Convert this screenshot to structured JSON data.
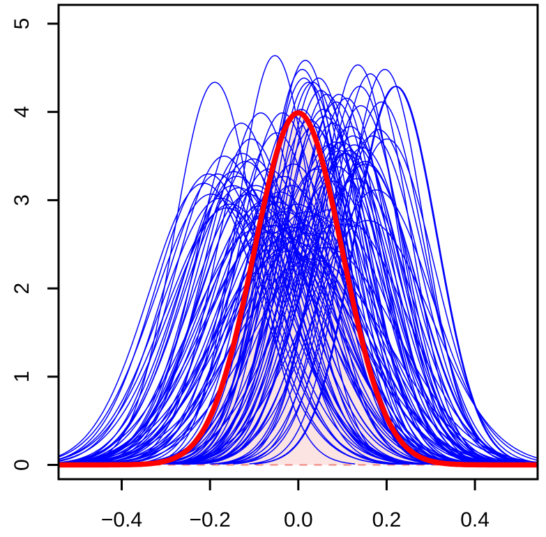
{
  "chart_data": {
    "type": "line",
    "title": "",
    "xlabel": "",
    "ylabel": "",
    "xlim": [
      -0.543,
      0.542
    ],
    "ylim": [
      -0.163,
      5.21
    ],
    "grid": false,
    "legend": "none",
    "x_ticks": {
      "values": [
        -0.4,
        -0.2,
        0.0,
        0.2,
        0.4
      ],
      "labels": [
        "−0.4",
        "−0.2",
        "0.0",
        "0.2",
        "0.4"
      ]
    },
    "y_ticks": {
      "values": [
        0,
        1,
        2,
        3,
        4,
        5
      ],
      "labels": [
        "0",
        "1",
        "2",
        "3",
        "4",
        "5"
      ]
    },
    "reference_curve": {
      "name": "true-normal-density",
      "distribution": "normal",
      "mean": 0,
      "sd": 0.1,
      "peak": 3.99,
      "color": "#ff0000",
      "line_width": 7.5
    },
    "shaded_region": {
      "description": "area under true normal density N(0, 0.1)",
      "fill": "#fbe4e1",
      "border_color": "#f0807a",
      "border_style": "dashed",
      "border_width": 2,
      "dash_pattern": [
        11,
        10
      ]
    },
    "sample_curves": {
      "name": "estimated-normal-densities",
      "distribution": "normal",
      "color": "#0000ff",
      "line_width": 1.5,
      "count": 100,
      "params": [
        [
          -0.012,
          0.101
        ],
        [
          0.087,
          0.118
        ],
        [
          -0.154,
          0.135
        ],
        [
          0.033,
          0.092
        ],
        [
          0.201,
          0.108
        ],
        [
          -0.096,
          0.126
        ],
        [
          0.142,
          0.098
        ],
        [
          -0.058,
          0.147
        ],
        [
          0.009,
          0.089
        ],
        [
          -0.203,
          0.121
        ],
        [
          0.118,
          0.104
        ],
        [
          -0.031,
          0.139
        ],
        [
          0.064,
          0.095
        ],
        [
          -0.127,
          0.113
        ],
        [
          0.176,
          0.128
        ],
        [
          0.022,
          0.152
        ],
        [
          -0.085,
          0.1
        ],
        [
          0.151,
          0.116
        ],
        [
          -0.176,
          0.132
        ],
        [
          0.046,
          0.091
        ],
        [
          0.103,
          0.143
        ],
        [
          -0.049,
          0.106
        ],
        [
          -0.139,
          0.122
        ],
        [
          0.188,
          0.097
        ],
        [
          -0.008,
          0.158
        ],
        [
          0.071,
          0.11
        ],
        [
          -0.113,
          0.13
        ],
        [
          0.135,
          0.088
        ],
        [
          -0.067,
          0.119
        ],
        [
          0.026,
          0.102
        ],
        [
          0.22,
          0.093
        ],
        [
          -0.162,
          0.137
        ],
        [
          0.094,
          0.112
        ],
        [
          -0.024,
          0.165
        ],
        [
          0.057,
          0.099
        ],
        [
          -0.189,
          0.092
        ],
        [
          0.124,
          0.107
        ],
        [
          0.003,
          0.146
        ],
        [
          -0.102,
          0.115
        ],
        [
          0.163,
          0.09
        ],
        [
          -0.041,
          0.129
        ],
        [
          0.079,
          0.103
        ],
        [
          -0.146,
          0.12
        ],
        [
          0.038,
          0.141
        ],
        [
          0.109,
          0.096
        ],
        [
          -0.074,
          0.133
        ],
        [
          0.016,
          0.087
        ],
        [
          -0.214,
          0.125
        ],
        [
          0.146,
          0.111
        ],
        [
          -0.011,
          0.117
        ],
        [
          0.182,
          0.105
        ],
        [
          -0.091,
          0.149
        ],
        [
          0.051,
          0.094
        ],
        [
          -0.134,
          0.127
        ],
        [
          0.098,
          0.109
        ],
        [
          0.029,
          0.171
        ],
        [
          -0.168,
          0.114
        ],
        [
          0.068,
          0.138
        ],
        [
          -0.036,
          0.1
        ],
        [
          0.131,
          0.123
        ],
        [
          -0.059,
          0.131
        ],
        [
          0.013,
          0.091
        ],
        [
          0.157,
          0.144
        ],
        [
          -0.107,
          0.108
        ],
        [
          0.042,
          0.119
        ],
        [
          -0.026,
          0.155
        ],
        [
          0.086,
          0.097
        ],
        [
          -0.148,
          0.126
        ],
        [
          0.115,
          0.112
        ],
        [
          -0.002,
          0.135
        ],
        [
          0.196,
          0.089
        ],
        [
          -0.078,
          0.142
        ],
        [
          0.035,
          0.104
        ],
        [
          -0.119,
          0.116
        ],
        [
          0.061,
          0.162
        ],
        [
          0.007,
          0.099
        ],
        [
          -0.183,
          0.121
        ],
        [
          0.127,
          0.11
        ],
        [
          -0.046,
          0.134
        ],
        [
          0.092,
          0.095
        ],
        [
          0.169,
          0.107
        ],
        [
          -0.019,
          0.148
        ],
        [
          0.049,
          0.118
        ],
        [
          -0.098,
          0.128
        ],
        [
          0.139,
          0.093
        ],
        [
          0.018,
          0.139
        ],
        [
          -0.129,
          0.103
        ],
        [
          0.075,
          0.124
        ],
        [
          -0.053,
          0.086
        ],
        [
          0.106,
          0.113
        ],
        [
          0.222,
          0.093
        ],
        [
          -0.197,
          0.13
        ],
        [
          0.084,
          0.109
        ],
        [
          -0.063,
          0.151
        ],
        [
          0.152,
          0.117
        ],
        [
          -0.033,
          0.122
        ],
        [
          0.023,
          0.092
        ],
        [
          -0.086,
          0.136
        ],
        [
          0.059,
          0.101
        ],
        [
          -0.015,
          0.126
        ]
      ]
    },
    "axis_color": "#000000",
    "background": "#ffffff",
    "tick_font_size": 30
  }
}
